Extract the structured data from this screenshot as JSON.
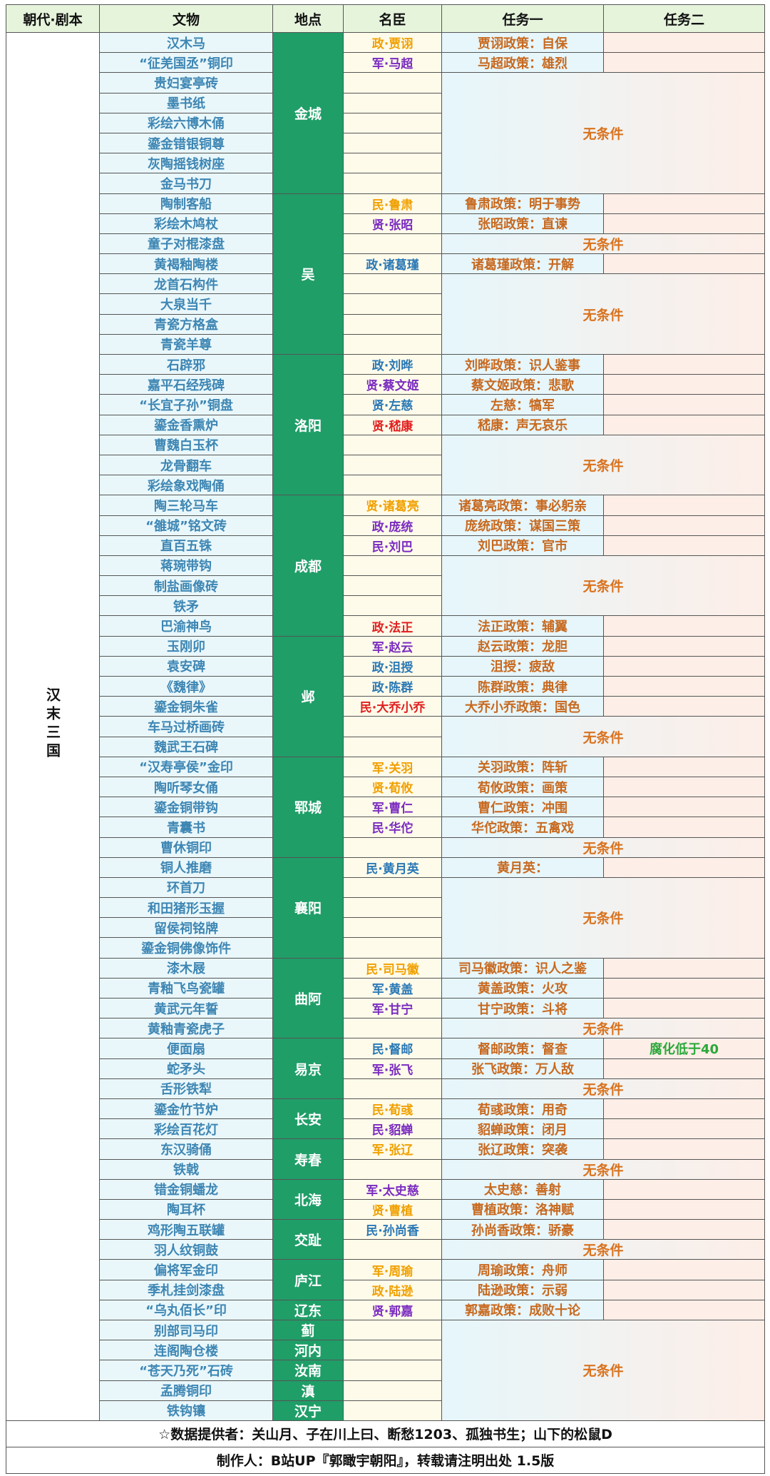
{
  "header": {
    "era": "朝代·剧本",
    "relic": "文物",
    "location": "地点",
    "minister": "名臣",
    "task1": "任务一",
    "task2": "任务二"
  },
  "era": "汉末三国",
  "locations": [
    {
      "name": "金城",
      "relics": [
        "汉木马",
        "“征羌国丞”铜印",
        "贵妇宴亭砖",
        "墨书纸",
        "彩绘六博木俑",
        "鎏金错银铜尊",
        "灰陶摇钱树座",
        "金马书刀"
      ]
    },
    {
      "name": "吴",
      "relics": [
        "陶制客船",
        "彩绘木鸠杖",
        "童子对棍漆盘",
        "黄褐釉陶楼",
        "龙首石构件",
        "大泉当千",
        "青瓷方格盒",
        "青瓷羊尊"
      ]
    },
    {
      "name": "洛阳",
      "relics": [
        "石辟邪",
        "嘉平石经残碑",
        "“长宜子孙”铜盘",
        "鎏金香熏炉",
        "曹魏白玉杯",
        "龙骨翻车",
        "彩绘象戏陶俑"
      ]
    },
    {
      "name": "成都",
      "relics": [
        "陶三轮马车",
        "“雒城”铭文砖",
        "直百五铢",
        "蒋琬带钩",
        "制盐画像砖",
        "铁矛",
        "巴渝神鸟"
      ]
    },
    {
      "name": "邺",
      "relics": [
        "玉刚卯",
        "袁安碑",
        "《魏律》",
        "鎏金铜朱雀",
        "车马过桥画砖",
        "魏武王石碑"
      ]
    },
    {
      "name": "郓城",
      "relics": [
        "“汉寿亭侯”金印",
        "陶听琴女俑",
        "鎏金铜带钩",
        "青囊书",
        "曹休铜印"
      ]
    },
    {
      "name": "襄阳",
      "relics": [
        "铜人推磨",
        "环首刀",
        "和田猪形玉握",
        "留侯祠铭牌",
        "鎏金铜佛像饰件"
      ]
    },
    {
      "name": "曲阿",
      "relics": [
        "漆木屐",
        "青釉飞鸟瓷罐",
        "黄武元年誓",
        "黄釉青瓷虎子"
      ]
    },
    {
      "name": "易京",
      "relics": [
        "便面扇",
        "蛇矛头",
        "舌形铁犁"
      ]
    },
    {
      "name": "长安",
      "relics": [
        "鎏金竹节炉",
        "彩绘百花灯"
      ]
    },
    {
      "name": "寿春",
      "relics": [
        "东汉骑俑",
        "铁戟"
      ]
    },
    {
      "name": "北海",
      "relics": [
        "错金铜蟠龙",
        "陶耳杯"
      ]
    },
    {
      "name": "交趾",
      "relics": [
        "鸡形陶五联罐",
        "羽人纹铜鼓"
      ]
    },
    {
      "name": "庐江",
      "relics": [
        "偏将军金印",
        "季札挂剑漆盘"
      ]
    },
    {
      "name": "辽东",
      "relics": [
        "“乌丸佰长”印"
      ]
    },
    {
      "name": "蓟",
      "relics": [
        "别部司马印"
      ]
    },
    {
      "name": "河内",
      "relics": [
        "连阁陶仓楼"
      ]
    },
    {
      "name": "汝南",
      "relics": [
        "“苍天乃死”石砖"
      ]
    },
    {
      "name": "滇",
      "relics": [
        "孟腾铜印"
      ]
    },
    {
      "name": "汉宁",
      "relics": [
        "铁钩镶"
      ]
    }
  ],
  "tasks": [
    {
      "minister": "政·贾诩",
      "color": "#f0a000",
      "task1": "贾诩政策：自保"
    },
    {
      "minister": "军·马超",
      "color": "#7a2cc0",
      "task1": "马超政策：雄烈"
    },
    {
      "free": "无条件",
      "rowspan": 6
    },
    {
      "minister": "民·鲁肃",
      "color": "#f0a000",
      "task1": "鲁肃政策：明于事势"
    },
    {
      "minister": "贤·张昭",
      "color": "#7a2cc0",
      "task1": "张昭政策：直谏"
    },
    {
      "free": "无条件",
      "rowspan": 1
    },
    {
      "minister": "政·诸葛瑾",
      "color": "#2a78b5",
      "task1": "诸葛瑾政策：开解"
    },
    {
      "free": "无条件",
      "rowspan": 4
    },
    {
      "minister": "政·刘晔",
      "color": "#2a78b5",
      "task1": "刘晔政策：识人鉴事"
    },
    {
      "minister": "贤·蔡文姬",
      "color": "#7a2cc0",
      "task1": "蔡文姬政策：悲歌"
    },
    {
      "minister": "贤·左慈",
      "color": "#2a78b5",
      "task1": "左慈：犒军"
    },
    {
      "minister": "贤·嵇康",
      "color": "#e02020",
      "task1": "嵇康：声无哀乐"
    },
    {
      "free": "无条件",
      "rowspan": 3
    },
    {
      "minister": "贤·诸葛亮",
      "color": "#f0a000",
      "task1": "诸葛亮政策：事必躬亲"
    },
    {
      "minister": "政·庞统",
      "color": "#7a2cc0",
      "task1": "庞统政策：谋国三策"
    },
    {
      "minister": "民·刘巴",
      "color": "#7a2cc0",
      "task1": "刘巴政策：官市"
    },
    {
      "free": "无条件",
      "rowspan": 3
    },
    {
      "minister": "政·法正",
      "color": "#e02020",
      "task1": "法正政策：辅翼"
    },
    {
      "minister": "军·赵云",
      "color": "#7a2cc0",
      "task1": "赵云政策：龙胆"
    },
    {
      "minister": "政·沮授",
      "color": "#2a78b5",
      "task1": "沮授：疲敌"
    },
    {
      "minister": "政·陈群",
      "color": "#2a78b5",
      "task1": "陈群政策：典律"
    },
    {
      "minister": "民·大乔小乔",
      "color": "#e02020",
      "task1": "大乔小乔政策：国色"
    },
    {
      "free": "无条件",
      "rowspan": 2
    },
    {
      "minister": "军·关羽",
      "color": "#f0a000",
      "task1": "关羽政策：阵斩"
    },
    {
      "minister": "贤·荀攸",
      "color": "#f0a000",
      "task1": "荀攸政策：画策"
    },
    {
      "minister": "军·曹仁",
      "color": "#7a2cc0",
      "task1": "曹仁政策：冲围"
    },
    {
      "minister": "民·华佗",
      "color": "#7a2cc0",
      "task1": "华佗政策：五禽戏"
    },
    {
      "free": "无条件",
      "rowspan": 1
    },
    {
      "minister": "民·黄月英",
      "color": "#2a78b5",
      "task1": "黄月英："
    },
    {
      "free": "无条件",
      "rowspan": 4
    },
    {
      "minister": "民·司马徽",
      "color": "#f0a000",
      "task1": "司马徽政策：识人之鉴"
    },
    {
      "minister": "军·黄盖",
      "color": "#2a78b5",
      "task1": "黄盖政策：火攻"
    },
    {
      "minister": "军·甘宁",
      "color": "#7a2cc0",
      "task1": "甘宁政策：斗将"
    },
    {
      "free": "无条件",
      "rowspan": 1
    },
    {
      "minister": "民·督邮",
      "color": "#2a78b5",
      "task1": "督邮政策：督查",
      "task2": "腐化低于40"
    },
    {
      "minister": "军·张飞",
      "color": "#7a2cc0",
      "task1": "张飞政策：万人敌"
    },
    {
      "free": "无条件",
      "rowspan": 1
    },
    {
      "minister": "民·荀彧",
      "color": "#f0a000",
      "task1": "荀彧政策：用奇"
    },
    {
      "minister": "民·貂蝉",
      "color": "#7a2cc0",
      "task1": "貂蝉政策：闭月"
    },
    {
      "minister": "军·张辽",
      "color": "#f0a000",
      "task1": "张辽政策：突袭"
    },
    {
      "free": "无条件",
      "rowspan": 1
    },
    {
      "minister": "军·太史慈",
      "color": "#7a2cc0",
      "task1": "太史慈：善射"
    },
    {
      "minister": "贤·曹植",
      "color": "#f0a000",
      "task1": "曹植政策：洛神赋"
    },
    {
      "minister": "民·孙尚香",
      "color": "#2a78b5",
      "task1": "孙尚香政策：骄豪"
    },
    {
      "free": "无条件",
      "rowspan": 1
    },
    {
      "minister": "军·周瑜",
      "color": "#f0a000",
      "task1": "周瑜政策：舟师"
    },
    {
      "minister": "政·陆逊",
      "color": "#f0a000",
      "task1": "陆逊政策：示弱"
    },
    {
      "minister": "贤·郭嘉",
      "color": "#7a2cc0",
      "task1": "郭嘉政策：成败十论"
    },
    {
      "free": "无条件",
      "rowspan": 5
    }
  ],
  "footer": [
    "☆数据提供者：关山月、子在川上曰、断愁1203、孤独书生；山下的松鼠D",
    "制作人：B站UP『郭瞰宇朝阳』，转载请注明出处 1.5版"
  ]
}
